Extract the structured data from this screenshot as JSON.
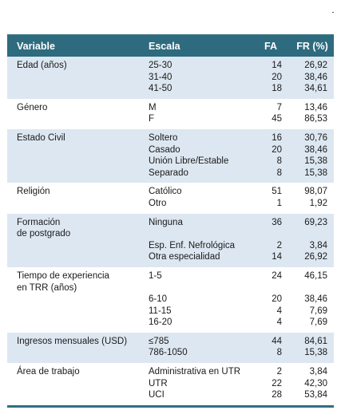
{
  "table": {
    "headers": {
      "variable": "Variable",
      "scale": "Escala",
      "fa": "FA",
      "fr": "FR (%)"
    },
    "groups": [
      {
        "variable": "Edad (años)",
        "rows": [
          {
            "scale": "25-30",
            "fa": "14",
            "fr": "26,92"
          },
          {
            "scale": "31-40",
            "fa": "20",
            "fr": "38,46"
          },
          {
            "scale": "41-50",
            "fa": "18",
            "fr": "34,61"
          }
        ]
      },
      {
        "variable": "Género",
        "rows": [
          {
            "scale": "M",
            "fa": "7",
            "fr": "13,46"
          },
          {
            "scale": "F",
            "fa": "45",
            "fr": "86,53"
          }
        ]
      },
      {
        "variable": "Estado Civil",
        "rows": [
          {
            "scale": "Soltero",
            "fa": "16",
            "fr": "30,76"
          },
          {
            "scale": "Casado",
            "fa": "20",
            "fr": "38,46"
          },
          {
            "scale": "Unión Libre/Estable",
            "fa": "8",
            "fr": "15,38"
          },
          {
            "scale": "Separado",
            "fa": "8",
            "fr": "15,38"
          }
        ]
      },
      {
        "variable": "Religión",
        "rows": [
          {
            "scale": "Católico",
            "fa": "51",
            "fr": "98,07"
          },
          {
            "scale": "Otro",
            "fa": "1",
            "fr": "1,92"
          }
        ]
      },
      {
        "variable": "Formación\nde postgrado",
        "rows": [
          {
            "scale": "Ninguna",
            "fa": "36",
            "fr": "69,23"
          },
          {
            "scale": "Esp. Enf. Nefrológica",
            "fa": "2",
            "fr": "3,84"
          },
          {
            "scale": "Otra especialidad",
            "fa": "14",
            "fr": "26,92"
          }
        ]
      },
      {
        "variable": "Tiempo de experiencia\nen TRR (años)",
        "rows": [
          {
            "scale": "1-5",
            "fa": "24",
            "fr": "46,15"
          },
          {
            "scale": "6-10",
            "fa": "20",
            "fr": "38,46"
          },
          {
            "scale": "11-15",
            "fa": "4",
            "fr": "7,69"
          },
          {
            "scale": "16-20",
            "fa": "4",
            "fr": "7,69"
          }
        ]
      },
      {
        "variable": "Ingresos mensuales (USD)",
        "rows": [
          {
            "scale": "≤785",
            "fa": "44",
            "fr": "84,61"
          },
          {
            "scale": "786-1050",
            "fa": "8",
            "fr": "15,38"
          }
        ]
      },
      {
        "variable": "Área de trabajo",
        "rows": [
          {
            "scale": "Administrativa en UTR",
            "fa": "2",
            "fr": "3,84"
          },
          {
            "scale": "UTR",
            "fa": "22",
            "fr": "42,30"
          },
          {
            "scale": "UCI",
            "fa": "28",
            "fr": "53,84"
          }
        ]
      }
    ],
    "colors": {
      "header_bg": "#2e6b7e",
      "shaded_row_bg": "#dde7f1",
      "rule": "#2f6f82"
    }
  }
}
